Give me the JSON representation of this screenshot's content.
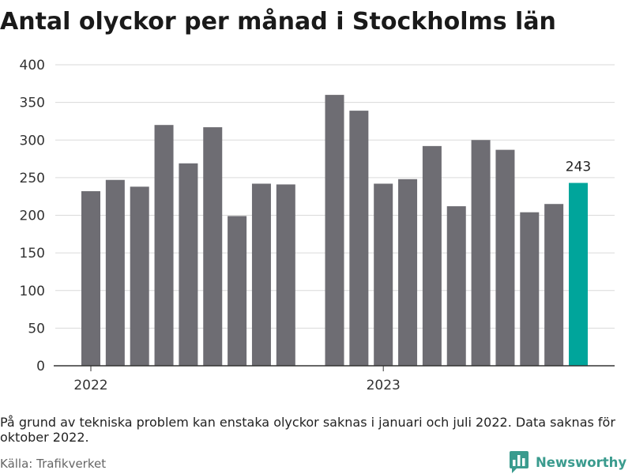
{
  "chart_data": {
    "type": "bar",
    "title": "Antal olyckor per månad i Stockholms län",
    "x": [
      "2022-01",
      "2022-02",
      "2022-03",
      "2022-04",
      "2022-05",
      "2022-06",
      "2022-07",
      "2022-08",
      "2022-09",
      "2022-11",
      "2022-12",
      "2023-01",
      "2023-02",
      "2023-03",
      "2023-04",
      "2023-05",
      "2023-06",
      "2023-07",
      "2023-08",
      "2023-09"
    ],
    "values": [
      232,
      247,
      238,
      320,
      269,
      317,
      199,
      242,
      241,
      360,
      339,
      242,
      248,
      292,
      212,
      300,
      287,
      204,
      215,
      243
    ],
    "ylim": [
      0,
      400
    ],
    "yticks": [
      0,
      50,
      100,
      150,
      200,
      250,
      300,
      350,
      400
    ],
    "xticks": [
      {
        "x": "2022-01",
        "label": "2022"
      },
      {
        "x": "2023-01",
        "label": "2023"
      }
    ],
    "grid": "horizontal",
    "bar_color": "#6e6d73",
    "highlight": {
      "x": "2023-09",
      "label": "243",
      "color": "#00a59b"
    }
  },
  "footer": {
    "note": "På grund av tekniska problem kan enstaka olyckor saknas i januari och juli 2022. Data saknas för oktober 2022.",
    "source": "Källa: Trafikverket"
  },
  "branding": {
    "name": "Newsworthy",
    "icon": "newsworthy-logo-icon",
    "color": "#3a9b8e"
  }
}
